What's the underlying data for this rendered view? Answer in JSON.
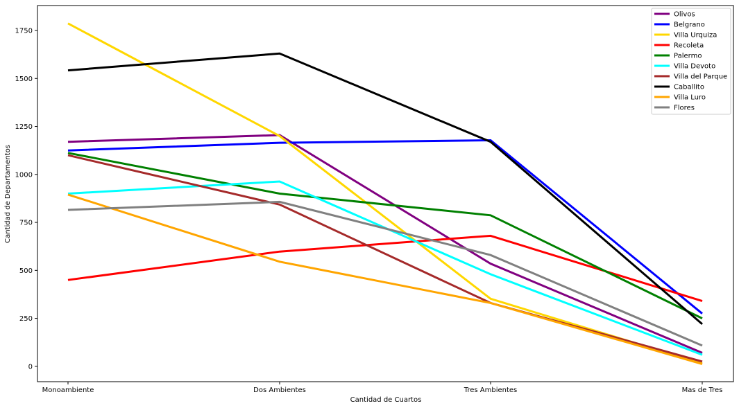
{
  "chart_data": {
    "type": "line",
    "title": "",
    "xlabel": "Cantidad de Cuartos",
    "ylabel": "Cantidad de Departamentos",
    "categories": [
      "Monoambiente",
      "Dos Ambientes",
      "Tres Ambientes",
      "Mas de Tres"
    ],
    "ylim": [
      -80,
      1880
    ],
    "yticks": [
      0,
      250,
      500,
      750,
      1000,
      1250,
      1500,
      1750
    ],
    "grid": false,
    "legend_position": "top-right",
    "series": [
      {
        "name": "Olivos",
        "color": "#800080",
        "values": [
          1170,
          1205,
          535,
          70
        ]
      },
      {
        "name": "Belgrano",
        "color": "#0000ff",
        "values": [
          1125,
          1165,
          1178,
          275
        ]
      },
      {
        "name": "Villa Urquiza",
        "color": "#ffd700",
        "values": [
          1787,
          1200,
          352,
          15
        ]
      },
      {
        "name": "Recoleta",
        "color": "#ff0000",
        "values": [
          450,
          598,
          680,
          340
        ]
      },
      {
        "name": "Palermo",
        "color": "#008000",
        "values": [
          1112,
          900,
          787,
          250
        ]
      },
      {
        "name": "Villa Devoto",
        "color": "#00ffff",
        "values": [
          900,
          963,
          480,
          60
        ]
      },
      {
        "name": "Villa del Parque",
        "color": "#a52a2a",
        "values": [
          1100,
          843,
          330,
          25
        ]
      },
      {
        "name": "Caballito",
        "color": "#000000",
        "values": [
          1542,
          1630,
          1170,
          220
        ]
      },
      {
        "name": "Villa Luro",
        "color": "#ffa500",
        "values": [
          895,
          545,
          330,
          12
        ]
      },
      {
        "name": "Flores",
        "color": "#808080",
        "values": [
          815,
          857,
          580,
          108
        ]
      }
    ]
  }
}
